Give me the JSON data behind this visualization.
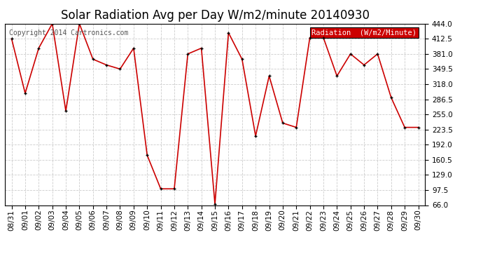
{
  "title": "Solar Radiation Avg per Day W/m2/minute 20140930",
  "copyright": "Copyright 2014 Cartronics.com",
  "legend_label": "Radiation  (W/m2/Minute)",
  "dates": [
    "08/31",
    "09/01",
    "09/02",
    "09/03",
    "09/04",
    "09/05",
    "09/06",
    "09/07",
    "09/08",
    "09/09",
    "09/10",
    "09/11",
    "09/12",
    "09/13",
    "09/14",
    "09/15",
    "09/16",
    "09/17",
    "09/18",
    "09/19",
    "09/20",
    "09/21",
    "09/22",
    "09/23",
    "09/24",
    "09/25",
    "09/26",
    "09/27",
    "09/28",
    "09/29",
    "09/30"
  ],
  "values": [
    412.5,
    299.0,
    393.0,
    444.0,
    262.0,
    444.0,
    370.0,
    358.0,
    349.5,
    393.0,
    170.0,
    100.0,
    100.0,
    381.0,
    393.0,
    68.0,
    425.0,
    370.0,
    210.0,
    335.0,
    237.0,
    228.0,
    415.0,
    415.0,
    335.0,
    381.0,
    358.0,
    381.0,
    290.0,
    228.0,
    228.0
  ],
  "line_color": "#cc0000",
  "marker_color": "#000000",
  "bg_color": "#ffffff",
  "grid_color": "#cccccc",
  "ylim": [
    66.0,
    444.0
  ],
  "yticks": [
    66.0,
    97.5,
    129.0,
    160.5,
    192.0,
    223.5,
    255.0,
    286.5,
    318.0,
    349.5,
    381.0,
    412.5,
    444.0
  ],
  "legend_bg": "#cc0000",
  "legend_text_color": "#ffffff",
  "title_fontsize": 12,
  "copyright_fontsize": 7,
  "tick_fontsize": 7.5,
  "legend_fontsize": 7.5
}
